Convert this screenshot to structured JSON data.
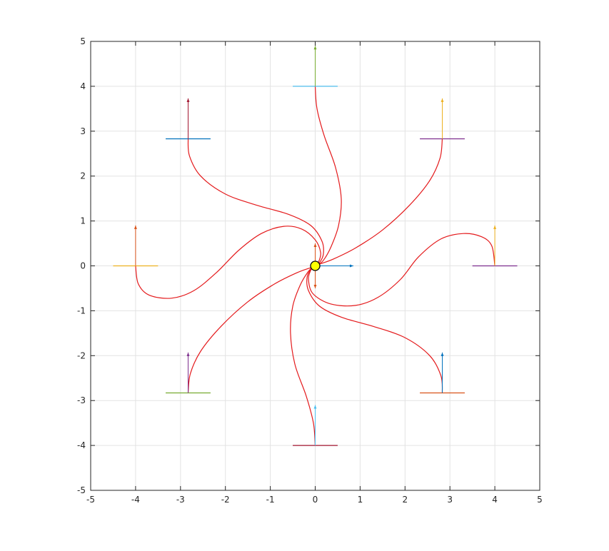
{
  "chart_data": {
    "type": "line",
    "title": "",
    "xlabel": "",
    "ylabel": "",
    "xlim": [
      -5,
      5
    ],
    "ylim": [
      -5,
      5
    ],
    "xticks": [
      -5,
      -4,
      -3,
      -2,
      -1,
      0,
      1,
      2,
      3,
      4,
      5
    ],
    "yticks": [
      -5,
      -4,
      -3,
      -2,
      -1,
      0,
      1,
      2,
      3,
      4,
      5
    ],
    "xtick_labels": [
      "-5",
      "-4",
      "-3",
      "-2",
      "-1",
      "0",
      "1",
      "2",
      "3",
      "4",
      "5"
    ],
    "ytick_labels": [
      "-5",
      "-4",
      "-3",
      "-2",
      "-1",
      "0",
      "1",
      "2",
      "3",
      "4",
      "5"
    ],
    "grid": true,
    "legend": "none",
    "aspect": "equal",
    "trajectory_color": "#e41a1c",
    "target": {
      "x": 0,
      "y": 0,
      "fill": "#ffff00",
      "heading_arrows": [
        {
          "dx": 0.85,
          "dy": 0,
          "color": "#0072bd"
        },
        {
          "dx": 0,
          "dy": 0.5,
          "color": "#d95319"
        },
        {
          "dx": 0,
          "dy": -0.5,
          "color": "#d95319"
        }
      ]
    },
    "starts": [
      {
        "x": 4,
        "y": 0,
        "color": "#7e2f8e",
        "arrow_color": "#edb120"
      },
      {
        "x": 2.83,
        "y": 2.83,
        "color": "#7e2f8e",
        "arrow_color": "#edb120"
      },
      {
        "x": 0,
        "y": 4,
        "color": "#4dbeee",
        "arrow_color": "#77ac30"
      },
      {
        "x": -2.83,
        "y": 2.83,
        "color": "#0072bd",
        "arrow_color": "#a2142f"
      },
      {
        "x": -4,
        "y": 0,
        "color": "#edb120",
        "arrow_color": "#d95319"
      },
      {
        "x": -2.83,
        "y": -2.83,
        "color": "#77ac30",
        "arrow_color": "#7e2f8e"
      },
      {
        "x": 0,
        "y": -4,
        "color": "#a2142f",
        "arrow_color": "#4dbeee"
      },
      {
        "x": 2.83,
        "y": -2.83,
        "color": "#d95319",
        "arrow_color": "#0072bd"
      }
    ],
    "series": [
      {
        "points": [
          [
            4,
            0
          ],
          [
            3.93,
            0.45
          ],
          [
            3.7,
            0.65
          ],
          [
            3.3,
            0.72
          ],
          [
            2.8,
            0.6
          ],
          [
            2.3,
            0.2
          ],
          [
            1.9,
            -0.3
          ],
          [
            1.4,
            -0.7
          ],
          [
            0.9,
            -0.88
          ],
          [
            0.35,
            -0.85
          ],
          [
            -0.05,
            -0.62
          ],
          [
            -0.15,
            -0.3
          ],
          [
            -0.1,
            -0.1
          ],
          [
            -0.02,
            0
          ]
        ]
      },
      {
        "points": [
          [
            2.83,
            2.83
          ],
          [
            2.78,
            2.4
          ],
          [
            2.55,
            1.9
          ],
          [
            2.1,
            1.35
          ],
          [
            1.5,
            0.8
          ],
          [
            0.9,
            0.4
          ],
          [
            0.4,
            0.15
          ],
          [
            0.1,
            0.04
          ],
          [
            0,
            0
          ]
        ]
      },
      {
        "points": [
          [
            0,
            4
          ],
          [
            0.04,
            3.5
          ],
          [
            0.2,
            2.9
          ],
          [
            0.45,
            2.2
          ],
          [
            0.58,
            1.5
          ],
          [
            0.52,
            0.9
          ],
          [
            0.35,
            0.42
          ],
          [
            0.18,
            0.12
          ],
          [
            0.05,
            0.02
          ],
          [
            0,
            0
          ]
        ]
      },
      {
        "points": [
          [
            -2.83,
            2.83
          ],
          [
            -2.8,
            2.45
          ],
          [
            -2.55,
            2.0
          ],
          [
            -2.0,
            1.6
          ],
          [
            -1.3,
            1.35
          ],
          [
            -0.6,
            1.15
          ],
          [
            -0.1,
            0.9
          ],
          [
            0.15,
            0.55
          ],
          [
            0.18,
            0.25
          ],
          [
            0.08,
            0.05
          ],
          [
            0,
            0
          ]
        ]
      },
      {
        "points": [
          [
            -4,
            0
          ],
          [
            -3.94,
            -0.4
          ],
          [
            -3.7,
            -0.65
          ],
          [
            -3.2,
            -0.72
          ],
          [
            -2.7,
            -0.55
          ],
          [
            -2.2,
            -0.15
          ],
          [
            -1.7,
            0.35
          ],
          [
            -1.2,
            0.72
          ],
          [
            -0.7,
            0.88
          ],
          [
            -0.3,
            0.82
          ],
          [
            0,
            0.58
          ],
          [
            0.12,
            0.3
          ],
          [
            0.08,
            0.1
          ],
          [
            0,
            0
          ]
        ]
      },
      {
        "points": [
          [
            -2.83,
            -2.83
          ],
          [
            -2.78,
            -2.4
          ],
          [
            -2.55,
            -1.9
          ],
          [
            -2.1,
            -1.35
          ],
          [
            -1.5,
            -0.8
          ],
          [
            -0.9,
            -0.4
          ],
          [
            -0.4,
            -0.15
          ],
          [
            -0.1,
            -0.04
          ],
          [
            0,
            0
          ]
        ]
      },
      {
        "points": [
          [
            0,
            -4
          ],
          [
            -0.04,
            -3.5
          ],
          [
            -0.2,
            -2.9
          ],
          [
            -0.45,
            -2.2
          ],
          [
            -0.55,
            -1.5
          ],
          [
            -0.5,
            -0.9
          ],
          [
            -0.33,
            -0.42
          ],
          [
            -0.15,
            -0.12
          ],
          [
            -0.04,
            -0.02
          ],
          [
            0,
            0
          ]
        ]
      },
      {
        "points": [
          [
            2.83,
            -2.83
          ],
          [
            2.8,
            -2.45
          ],
          [
            2.55,
            -2.0
          ],
          [
            2.0,
            -1.6
          ],
          [
            1.3,
            -1.35
          ],
          [
            0.6,
            -1.15
          ],
          [
            0.1,
            -0.9
          ],
          [
            -0.15,
            -0.55
          ],
          [
            -0.18,
            -0.25
          ],
          [
            -0.08,
            -0.05
          ],
          [
            0,
            0
          ]
        ]
      }
    ]
  }
}
